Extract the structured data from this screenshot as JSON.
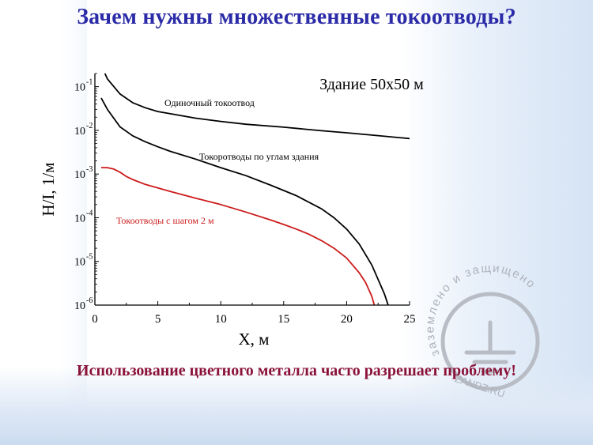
{
  "slide": {
    "title": "Зачем нужны множественные токоотводы?",
    "caption": "Использование цветного металла часто разрешает проблему!"
  },
  "watermark": {
    "arc_text": "заземлено и защищено",
    "site": "ZANDZ.RU",
    "icon": "ground-symbol-icon"
  },
  "chart_data": {
    "type": "line",
    "title": "Здание 50х50 м",
    "xlabel": "X,  м",
    "ylabel": "Н/I,  1/м",
    "xlim": [
      0,
      25
    ],
    "ylim": [
      1e-06,
      0.2
    ],
    "yscale": "log",
    "x_ticks": [
      0,
      5,
      10,
      15,
      20,
      25
    ],
    "x_tick_labels": [
      "0",
      "5",
      "10",
      "15",
      "20",
      "25"
    ],
    "y_ticks": [
      0.1,
      0.01,
      0.001,
      0.0001,
      1e-05,
      1e-06
    ],
    "y_tick_labels": [
      {
        "base": "10",
        "exp": "-1"
      },
      {
        "base": "10",
        "exp": "-2"
      },
      {
        "base": "10",
        "exp": "-3"
      },
      {
        "base": "10",
        "exp": "-4"
      },
      {
        "base": "10",
        "exp": "-5"
      },
      {
        "base": "10",
        "exp": "-6"
      }
    ],
    "grid": false,
    "series": [
      {
        "name": "Одиночный токоотвод",
        "color": "#000000",
        "x": [
          0.8,
          1,
          2,
          3,
          4,
          5,
          6,
          8,
          10,
          12,
          15,
          18,
          20,
          22,
          25
        ],
        "y": [
          0.2,
          0.15,
          0.068,
          0.043,
          0.033,
          0.027,
          0.024,
          0.019,
          0.016,
          0.0138,
          0.0118,
          0.0098,
          0.0088,
          0.0078,
          0.0065
        ]
      },
      {
        "name": "Токоротводы по углам здания",
        "color": "#000000",
        "x": [
          0.5,
          1,
          2,
          3,
          4,
          5,
          6,
          8,
          10,
          12,
          14,
          16,
          18,
          19,
          20,
          21,
          22,
          23,
          23.3
        ],
        "y": [
          0.055,
          0.03,
          0.012,
          0.0075,
          0.0055,
          0.0042,
          0.0033,
          0.0022,
          0.0014,
          0.00092,
          0.00055,
          0.00032,
          0.00016,
          0.0001,
          5.5e-05,
          2.5e-05,
          8.3e-06,
          1.8e-06,
          1e-06
        ]
      },
      {
        "name": "Токоотводы с шагом 2 м",
        "color": "#cc1a1a",
        "x": [
          0.5,
          1,
          1.5,
          2,
          2.5,
          3,
          4,
          5,
          6,
          8,
          10,
          12,
          14,
          15,
          16,
          17,
          18,
          19,
          20,
          21,
          21.5,
          22,
          22.2
        ],
        "y": [
          0.0014,
          0.0014,
          0.0013,
          0.0011,
          0.00088,
          0.00075,
          0.00058,
          0.00048,
          0.0004,
          0.00028,
          0.0002,
          0.000135,
          8.8e-05,
          7e-05,
          5.5e-05,
          4.2e-05,
          3e-05,
          2e-05,
          1.2e-05,
          5.5e-06,
          3.3e-06,
          1.6e-06,
          1e-06
        ]
      }
    ]
  }
}
